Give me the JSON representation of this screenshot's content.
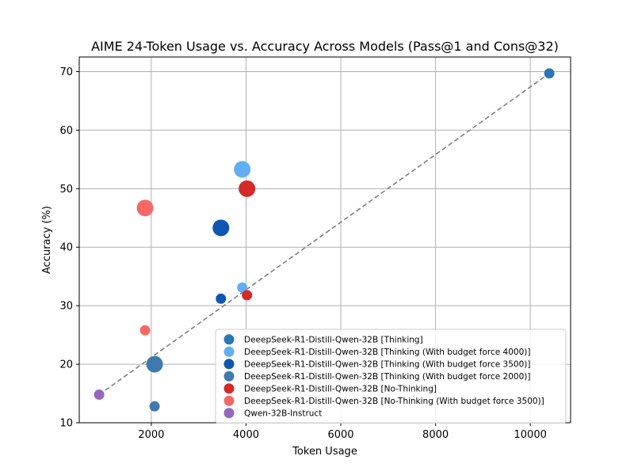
{
  "chart_data": {
    "type": "scatter",
    "title": "AIME 24-Token Usage vs. Accuracy Across Models (Pass@1 and Cons@32)",
    "xlabel": "Token Usage",
    "ylabel": "Accuracy (%)",
    "xlim": [
      480,
      10850
    ],
    "ylim": [
      10,
      72.5
    ],
    "xticks": [
      2000,
      4000,
      6000,
      8000,
      10000
    ],
    "yticks": [
      10,
      20,
      30,
      40,
      50,
      60,
      70
    ],
    "grid": true,
    "legend_position": "lower-right",
    "trend_line": {
      "x": [
        900,
        10400
      ],
      "y": [
        14.8,
        69.7
      ],
      "color": "#808080",
      "style": "dashed"
    },
    "series": [
      {
        "name": "DeeepSeek-R1-Distill-Qwen-32B [Thinking]",
        "color": "#2a77b4",
        "points": [
          {
            "x": 10400,
            "y": 69.7,
            "size": "small"
          }
        ]
      },
      {
        "name": "DeeepSeek-R1-Distill-Qwen-32B [Thinking (With budget force 4000)]",
        "color": "#62aef2",
        "points": [
          {
            "x": 3920,
            "y": 33.1,
            "size": "small"
          },
          {
            "x": 3920,
            "y": 53.3,
            "size": "large"
          }
        ]
      },
      {
        "name": "DeeepSeek-R1-Distill-Qwen-32B [Thinking (With budget force 3500)]",
        "color": "#0d56b4",
        "points": [
          {
            "x": 3470,
            "y": 31.2,
            "size": "small"
          },
          {
            "x": 3470,
            "y": 43.3,
            "size": "large"
          }
        ]
      },
      {
        "name": "DeeepSeek-R1-Distill-Qwen-32B [Thinking (With budget force 2000)]",
        "color": "#4079ad",
        "points": [
          {
            "x": 2070,
            "y": 12.8,
            "size": "small"
          },
          {
            "x": 2070,
            "y": 20.0,
            "size": "large"
          }
        ]
      },
      {
        "name": "DeeepSeek-R1-Distill-Qwen-32B [No-Thinking]",
        "color": "#d42a2a",
        "points": [
          {
            "x": 4020,
            "y": 31.8,
            "size": "small"
          },
          {
            "x": 4020,
            "y": 50.0,
            "size": "large"
          }
        ]
      },
      {
        "name": "DeeepSeek-R1-Distill-Qwen-32B [No-Thinking (With budget force 3500)]",
        "color": "#f66767",
        "points": [
          {
            "x": 1870,
            "y": 25.8,
            "size": "small"
          },
          {
            "x": 1870,
            "y": 46.7,
            "size": "large"
          }
        ]
      },
      {
        "name": "Qwen-32B-Instruct",
        "color": "#9467bd",
        "points": [
          {
            "x": 900,
            "y": 14.8,
            "size": "small"
          }
        ]
      }
    ]
  }
}
